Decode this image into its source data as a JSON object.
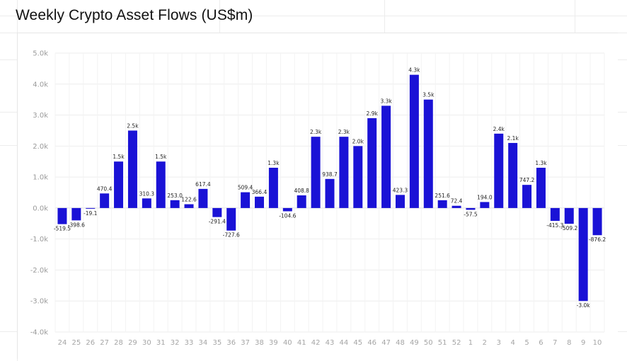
{
  "chart_data": {
    "type": "bar",
    "title": "Weekly Crypto Asset Flows (US$m)",
    "xlabel": "",
    "ylabel": "",
    "ylim": [
      -4000,
      5000
    ],
    "yticks": [
      {
        "value": 5000,
        "label": "5.0k"
      },
      {
        "value": 4000,
        "label": "4.0k"
      },
      {
        "value": 3000,
        "label": "3.0k"
      },
      {
        "value": 2000,
        "label": "2.0k"
      },
      {
        "value": 1000,
        "label": "1.0k"
      },
      {
        "value": 0,
        "label": "0.0k"
      },
      {
        "value": -1000,
        "label": "-1.0k"
      },
      {
        "value": -2000,
        "label": "-2.0k"
      },
      {
        "value": -3000,
        "label": "-3.0k"
      },
      {
        "value": -4000,
        "label": "-4.0k"
      }
    ],
    "grid": true,
    "bar_color": "#1a12d6",
    "categories": [
      "24",
      "25",
      "26",
      "27",
      "28",
      "29",
      "30",
      "31",
      "32",
      "33",
      "34",
      "35",
      "36",
      "37",
      "38",
      "39",
      "40",
      "41",
      "42",
      "43",
      "44",
      "45",
      "46",
      "47",
      "48",
      "49",
      "50",
      "51",
      "52",
      "1",
      "2",
      "3",
      "4",
      "5",
      "6",
      "7",
      "8",
      "9",
      "10"
    ],
    "values": [
      -519.5,
      -398.6,
      -19.1,
      470.4,
      1500,
      2500,
      310.3,
      1500,
      253.0,
      122.6,
      617.4,
      -291.4,
      -727.6,
      509.4,
      366.4,
      1300,
      -104.6,
      408.8,
      2300,
      938.7,
      2300,
      2000,
      2900,
      3300,
      423.3,
      4300,
      3500,
      251.6,
      72.4,
      -57.5,
      194.0,
      2400,
      2100,
      747.2,
      1300,
      -415.3,
      -509.2,
      -3000,
      -876.2
    ],
    "labels": [
      "-519.5",
      "-398.6",
      "-19.1",
      "470.4",
      "1.5k",
      "2.5k",
      "310.3",
      "1.5k",
      "253.0",
      "122.6",
      "617.4",
      "-291.4",
      "-727.6",
      "509.4",
      "366.4",
      "1.3k",
      "-104.6",
      "408.8",
      "2.3k",
      "938.7",
      "2.3k",
      "2.0k",
      "2.9k",
      "3.3k",
      "423.3",
      "4.3k",
      "3.5k",
      "251.6",
      "72.4",
      "-57.5",
      "194.0",
      "2.4k",
      "2.1k",
      "747.2",
      "1.3k",
      "-415.3",
      "-509.2",
      "-3.0k",
      "-876.2"
    ]
  }
}
